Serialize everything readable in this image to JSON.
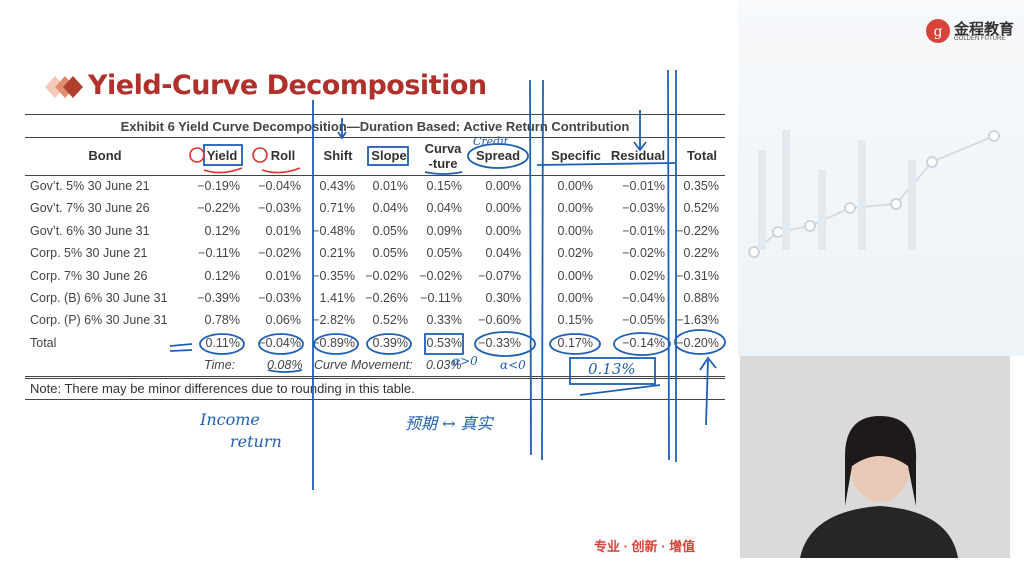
{
  "slide": {
    "title": "Yield-Curve Decomposition",
    "exhibit_title": "Exhibit 6 Yield Curve Decomposition—Duration Based: Active Return Contribution",
    "columns": [
      "Bond",
      "Yield",
      "Roll",
      "Shift",
      "Slope",
      "Curva\n-ture",
      "Spread",
      "Specific",
      "Residual",
      "Total"
    ],
    "rows": [
      [
        "Gov’t. 5% 30 June 21",
        "−0.19%",
        "−0.04%",
        "0.43%",
        "0.01%",
        "0.15%",
        "0.00%",
        "0.00%",
        "−0.01%",
        "0.35%"
      ],
      [
        "Gov’t. 7% 30 June 26",
        "−0.22%",
        "−0.03%",
        "0.71%",
        "0.04%",
        "0.04%",
        "0.00%",
        "0.00%",
        "−0.03%",
        "0.52%"
      ],
      [
        "Gov’t. 6% 30 June 31",
        "0.12%",
        "0.01%",
        "−0.48%",
        "0.05%",
        "0.09%",
        "0.00%",
        "0.00%",
        "−0.01%",
        "−0.22%"
      ],
      [
        "Corp. 5% 30 June 21",
        "−0.11%",
        "−0.02%",
        "0.21%",
        "0.05%",
        "0.05%",
        "0.04%",
        "0.02%",
        "−0.02%",
        "0.22%"
      ],
      [
        "Corp. 7% 30 June 26",
        "0.12%",
        "0.01%",
        "−0.35%",
        "−0.02%",
        "−0.02%",
        "−0.07%",
        "0.00%",
        "0.02%",
        "−0.31%"
      ],
      [
        "Corp. (B) 6% 30 June 31",
        "−0.39%",
        "−0.03%",
        "1.41%",
        "−0.26%",
        "−0.11%",
        "0.30%",
        "0.00%",
        "−0.04%",
        "0.88%"
      ],
      [
        "Corp. (P) 6% 30 June 31",
        "0.78%",
        "0.06%",
        "−2.82%",
        "0.52%",
        "0.33%",
        "−0.60%",
        "0.15%",
        "−0.05%",
        "−1.63%"
      ],
      [
        "Total",
        "0.11%",
        "−0.04%",
        "−0.89%",
        "0.39%",
        "0.53%",
        "−0.33%",
        "0.17%",
        "−0.14%",
        "−0.20%"
      ]
    ],
    "time_label": "Time:",
    "time_value": "0.08%",
    "curve_label": "Curve Movement:",
    "curve_value": "0.03%",
    "note": "Note: There may be minor differences due to rounding in this table."
  },
  "annotations": {
    "income": "Income",
    "return": "return",
    "credit": "Credit",
    "sum": "0.13%",
    "alpha_pos": "α>0",
    "alpha_neg": "α<0",
    "expected_actual": "预期 ↔ 真实"
  },
  "brand": {
    "name": "金程教育",
    "sub": "GOLDEN FUTURE",
    "slogan": "专业 · 创新 · 增值"
  },
  "colors": {
    "title": "#b0302c",
    "ink": "#1f5fb4",
    "red_ink": "#e03030"
  }
}
